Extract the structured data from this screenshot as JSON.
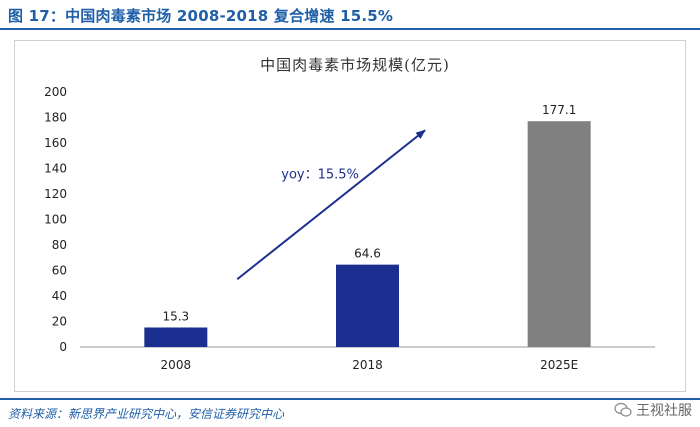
{
  "figure": {
    "title": "图 17：中国肉毒素市场 2008-2018  复合增速 15.5%",
    "source": "资料来源：新思界产业研究中心，安信证券研究中心",
    "watermark": "王视社服"
  },
  "chart_data": {
    "type": "bar",
    "title": "中国肉毒素市场规模(亿元)",
    "categories": [
      "2008",
      "2018",
      "2025E"
    ],
    "values": [
      15.3,
      64.6,
      177.1
    ],
    "data_labels": [
      "15.3",
      "64.6",
      "177.1"
    ],
    "bar_colors": [
      "#1a2f8f",
      "#1a2f8f",
      "#808080"
    ],
    "ylim": [
      0,
      200
    ],
    "yticks": [
      0,
      20,
      40,
      60,
      80,
      100,
      120,
      140,
      160,
      180,
      200
    ],
    "xlabel": "",
    "ylabel": "",
    "grid": false,
    "annotation": {
      "text": "yoy：15.5%",
      "from": [
        "2008",
        50
      ],
      "to": [
        "2018",
        170
      ]
    }
  },
  "colors": {
    "accent": "#1f5fa8",
    "arrow": "#1a2f8f",
    "axis": "#999999"
  }
}
